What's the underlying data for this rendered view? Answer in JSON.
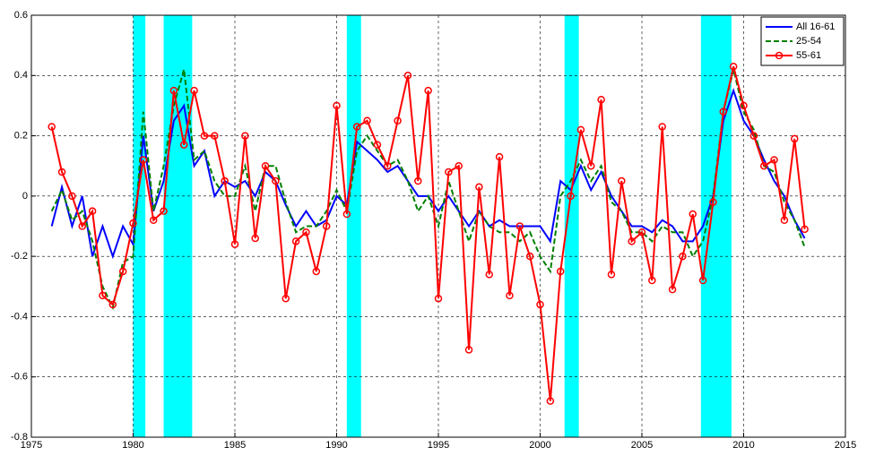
{
  "chart_data": {
    "type": "line",
    "x": [
      1976,
      1976.5,
      1977,
      1977.5,
      1978,
      1978.5,
      1979,
      1979.5,
      1980,
      1980.5,
      1981,
      1981.5,
      1982,
      1982.5,
      1983,
      1983.5,
      1984,
      1984.5,
      1985,
      1985.5,
      1986,
      1986.5,
      1987,
      1987.5,
      1988,
      1988.5,
      1989,
      1989.5,
      1990,
      1990.5,
      1991,
      1991.5,
      1992,
      1992.5,
      1993,
      1993.5,
      1994,
      1994.5,
      1995,
      1995.5,
      1996,
      1996.5,
      1997,
      1997.5,
      1998,
      1998.5,
      1999,
      1999.5,
      2000,
      2000.5,
      2001,
      2001.5,
      2002,
      2002.5,
      2003,
      2003.5,
      2004,
      2004.5,
      2005,
      2005.5,
      2006,
      2006.5,
      2007,
      2007.5,
      2008,
      2008.5,
      2009,
      2009.5,
      2010,
      2010.5,
      2011,
      2011.5,
      2012,
      2012.5,
      2013
    ],
    "series": [
      {
        "name": "All 16-61",
        "color": "#0000ff",
        "dash": false,
        "markers": false,
        "values": [
          -0.1,
          0.03,
          -0.1,
          0.0,
          -0.2,
          -0.1,
          -0.2,
          -0.1,
          -0.16,
          0.2,
          -0.05,
          0.05,
          0.25,
          0.3,
          0.1,
          0.15,
          0.0,
          0.05,
          0.03,
          0.05,
          0.0,
          0.08,
          0.05,
          -0.03,
          -0.1,
          -0.05,
          -0.1,
          -0.08,
          0.0,
          -0.03,
          0.18,
          0.15,
          0.12,
          0.08,
          0.1,
          0.05,
          0.0,
          0.0,
          -0.05,
          0.0,
          -0.05,
          -0.1,
          -0.05,
          -0.1,
          -0.08,
          -0.1,
          -0.1,
          -0.1,
          -0.1,
          -0.15,
          0.05,
          0.02,
          0.1,
          0.02,
          0.08,
          0.0,
          -0.05,
          -0.1,
          -0.1,
          -0.12,
          -0.08,
          -0.1,
          -0.15,
          -0.15,
          -0.1,
          0.0,
          0.25,
          0.35,
          0.25,
          0.2,
          0.12,
          0.05,
          0.0,
          -0.08,
          -0.14
        ]
      },
      {
        "name": "25-54",
        "color": "#008000",
        "dash": true,
        "markers": false,
        "values": [
          -0.05,
          0.02,
          -0.08,
          -0.05,
          -0.15,
          -0.3,
          -0.37,
          -0.22,
          -0.2,
          0.28,
          -0.05,
          0.1,
          0.3,
          0.42,
          0.12,
          0.15,
          0.05,
          0.0,
          0.0,
          0.1,
          -0.05,
          0.1,
          0.1,
          -0.02,
          -0.12,
          -0.1,
          -0.1,
          -0.05,
          0.02,
          -0.05,
          0.15,
          0.2,
          0.15,
          0.1,
          0.12,
          0.05,
          -0.05,
          0.0,
          -0.1,
          0.05,
          -0.05,
          -0.15,
          -0.05,
          -0.1,
          -0.12,
          -0.12,
          -0.15,
          -0.12,
          -0.2,
          -0.25,
          0.0,
          0.05,
          0.12,
          0.05,
          0.1,
          -0.02,
          -0.05,
          -0.12,
          -0.12,
          -0.15,
          -0.1,
          -0.12,
          -0.12,
          -0.2,
          -0.15,
          0.0,
          0.28,
          0.42,
          0.28,
          0.22,
          0.1,
          0.08,
          -0.02,
          -0.08,
          -0.17
        ]
      },
      {
        "name": "55-61",
        "color": "#ff0000",
        "dash": false,
        "markers": true,
        "values": [
          0.23,
          0.08,
          0.0,
          -0.1,
          -0.05,
          -0.33,
          -0.36,
          -0.25,
          -0.09,
          0.12,
          -0.08,
          -0.05,
          0.35,
          0.17,
          0.35,
          0.2,
          0.2,
          0.05,
          -0.16,
          0.2,
          -0.14,
          0.1,
          0.05,
          -0.34,
          -0.15,
          -0.12,
          -0.25,
          -0.1,
          0.3,
          -0.06,
          0.23,
          0.25,
          0.17,
          0.1,
          0.25,
          0.4,
          0.05,
          0.35,
          -0.34,
          0.08,
          0.1,
          -0.51,
          0.03,
          -0.26,
          0.13,
          -0.33,
          -0.1,
          -0.2,
          -0.36,
          -0.68,
          -0.25,
          0.0,
          0.22,
          0.1,
          0.32,
          -0.26,
          0.05,
          -0.15,
          -0.12,
          -0.28,
          0.23,
          -0.31,
          -0.2,
          -0.06,
          -0.28,
          -0.02,
          0.28,
          0.43,
          0.3,
          0.2,
          0.1,
          0.12,
          -0.08,
          0.19,
          -0.11
        ]
      }
    ],
    "shaded_ranges": [
      [
        1980.0,
        1980.6
      ],
      [
        1981.5,
        1982.9
      ],
      [
        1990.5,
        1991.2
      ],
      [
        2001.2,
        2001.9
      ],
      [
        2007.9,
        2009.4
      ]
    ],
    "shade_color": "#00ffff",
    "xlim": [
      1975,
      2015
    ],
    "xticks": [
      1975,
      1980,
      1985,
      1990,
      1995,
      2000,
      2005,
      2010,
      2015
    ],
    "ylim": [
      -0.8,
      0.6
    ],
    "yticks": [
      -0.8,
      -0.6,
      -0.4,
      -0.2,
      0,
      0.2,
      0.4,
      0.6
    ],
    "grid": true,
    "legend": "upper right"
  }
}
